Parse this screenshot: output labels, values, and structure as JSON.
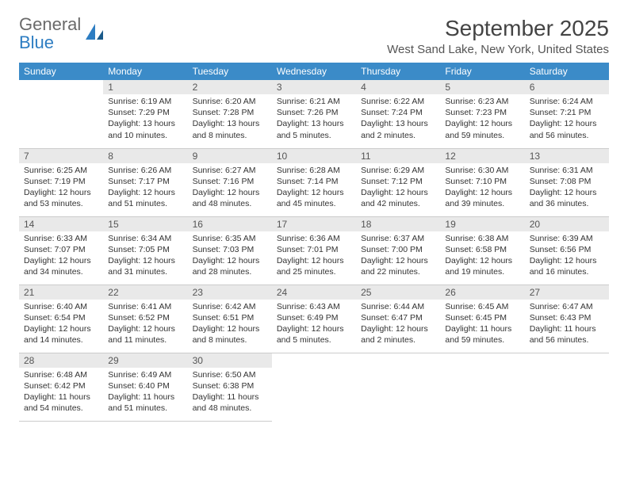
{
  "logo": {
    "line1": "General",
    "line2": "Blue"
  },
  "title": "September 2025",
  "location": "West Sand Lake, New York, United States",
  "colors": {
    "header_bg": "#3b8bc8",
    "header_fg": "#ffffff",
    "daynum_bg": "#e9e9e9",
    "logo_gray": "#6a6a6a",
    "logo_blue": "#2d7dc2"
  },
  "weekdays": [
    "Sunday",
    "Monday",
    "Tuesday",
    "Wednesday",
    "Thursday",
    "Friday",
    "Saturday"
  ],
  "leading_blanks": 1,
  "days": [
    {
      "n": 1,
      "sr": "6:19 AM",
      "ss": "7:29 PM",
      "dl": "13 hours and 10 minutes."
    },
    {
      "n": 2,
      "sr": "6:20 AM",
      "ss": "7:28 PM",
      "dl": "13 hours and 8 minutes."
    },
    {
      "n": 3,
      "sr": "6:21 AM",
      "ss": "7:26 PM",
      "dl": "13 hours and 5 minutes."
    },
    {
      "n": 4,
      "sr": "6:22 AM",
      "ss": "7:24 PM",
      "dl": "13 hours and 2 minutes."
    },
    {
      "n": 5,
      "sr": "6:23 AM",
      "ss": "7:23 PM",
      "dl": "12 hours and 59 minutes."
    },
    {
      "n": 6,
      "sr": "6:24 AM",
      "ss": "7:21 PM",
      "dl": "12 hours and 56 minutes."
    },
    {
      "n": 7,
      "sr": "6:25 AM",
      "ss": "7:19 PM",
      "dl": "12 hours and 53 minutes."
    },
    {
      "n": 8,
      "sr": "6:26 AM",
      "ss": "7:17 PM",
      "dl": "12 hours and 51 minutes."
    },
    {
      "n": 9,
      "sr": "6:27 AM",
      "ss": "7:16 PM",
      "dl": "12 hours and 48 minutes."
    },
    {
      "n": 10,
      "sr": "6:28 AM",
      "ss": "7:14 PM",
      "dl": "12 hours and 45 minutes."
    },
    {
      "n": 11,
      "sr": "6:29 AM",
      "ss": "7:12 PM",
      "dl": "12 hours and 42 minutes."
    },
    {
      "n": 12,
      "sr": "6:30 AM",
      "ss": "7:10 PM",
      "dl": "12 hours and 39 minutes."
    },
    {
      "n": 13,
      "sr": "6:31 AM",
      "ss": "7:08 PM",
      "dl": "12 hours and 36 minutes."
    },
    {
      "n": 14,
      "sr": "6:33 AM",
      "ss": "7:07 PM",
      "dl": "12 hours and 34 minutes."
    },
    {
      "n": 15,
      "sr": "6:34 AM",
      "ss": "7:05 PM",
      "dl": "12 hours and 31 minutes."
    },
    {
      "n": 16,
      "sr": "6:35 AM",
      "ss": "7:03 PM",
      "dl": "12 hours and 28 minutes."
    },
    {
      "n": 17,
      "sr": "6:36 AM",
      "ss": "7:01 PM",
      "dl": "12 hours and 25 minutes."
    },
    {
      "n": 18,
      "sr": "6:37 AM",
      "ss": "7:00 PM",
      "dl": "12 hours and 22 minutes."
    },
    {
      "n": 19,
      "sr": "6:38 AM",
      "ss": "6:58 PM",
      "dl": "12 hours and 19 minutes."
    },
    {
      "n": 20,
      "sr": "6:39 AM",
      "ss": "6:56 PM",
      "dl": "12 hours and 16 minutes."
    },
    {
      "n": 21,
      "sr": "6:40 AM",
      "ss": "6:54 PM",
      "dl": "12 hours and 14 minutes."
    },
    {
      "n": 22,
      "sr": "6:41 AM",
      "ss": "6:52 PM",
      "dl": "12 hours and 11 minutes."
    },
    {
      "n": 23,
      "sr": "6:42 AM",
      "ss": "6:51 PM",
      "dl": "12 hours and 8 minutes."
    },
    {
      "n": 24,
      "sr": "6:43 AM",
      "ss": "6:49 PM",
      "dl": "12 hours and 5 minutes."
    },
    {
      "n": 25,
      "sr": "6:44 AM",
      "ss": "6:47 PM",
      "dl": "12 hours and 2 minutes."
    },
    {
      "n": 26,
      "sr": "6:45 AM",
      "ss": "6:45 PM",
      "dl": "11 hours and 59 minutes."
    },
    {
      "n": 27,
      "sr": "6:47 AM",
      "ss": "6:43 PM",
      "dl": "11 hours and 56 minutes."
    },
    {
      "n": 28,
      "sr": "6:48 AM",
      "ss": "6:42 PM",
      "dl": "11 hours and 54 minutes."
    },
    {
      "n": 29,
      "sr": "6:49 AM",
      "ss": "6:40 PM",
      "dl": "11 hours and 51 minutes."
    },
    {
      "n": 30,
      "sr": "6:50 AM",
      "ss": "6:38 PM",
      "dl": "11 hours and 48 minutes."
    }
  ]
}
